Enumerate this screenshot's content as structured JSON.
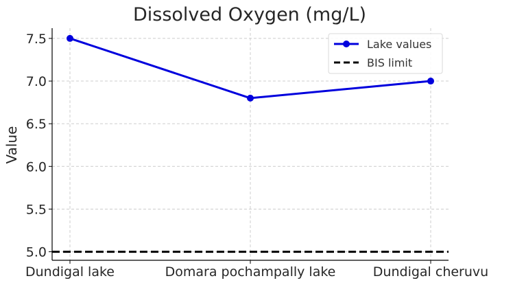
{
  "chart_data": {
    "type": "line",
    "title": "Dissolved Oxygen (mg/L)",
    "xlabel": "",
    "ylabel": "Value",
    "categories": [
      "Dundigal lake",
      "Domara pochampally lake",
      "Dundigal cheruvu"
    ],
    "series": [
      {
        "name": "Lake values",
        "values": [
          7.5,
          6.8,
          7.0
        ],
        "color": "#0000dd",
        "style": "solid",
        "marker": "circle"
      }
    ],
    "reference_lines": [
      {
        "name": "BIS limit",
        "value": 5.0,
        "color": "#000000",
        "style": "dashed"
      }
    ],
    "ylim": [
      4.9,
      7.62
    ],
    "yticks": [
      5.0,
      5.5,
      6.0,
      6.5,
      7.0,
      7.5
    ],
    "ytick_labels": [
      "5.0",
      "5.5",
      "6.0",
      "6.5",
      "7.0",
      "7.5"
    ],
    "grid": true,
    "legend_position": "top-right"
  }
}
